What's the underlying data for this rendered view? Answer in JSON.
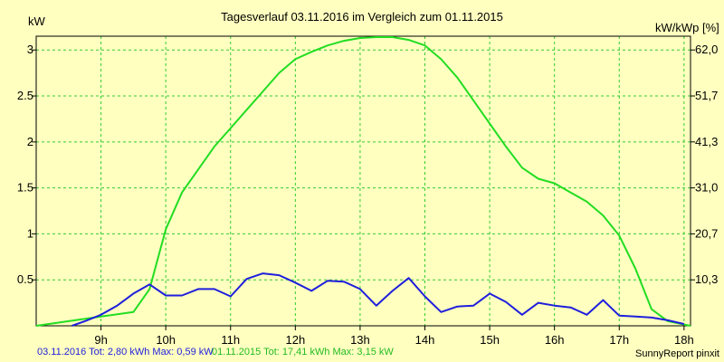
{
  "chart_data": {
    "type": "line",
    "title": "Tagesverlauf 03.11.2016 im Vergleich zum 01.11.2015",
    "ylabel_left": "kW",
    "ylabel_right": "kW/kWp [%]",
    "xlim": [
      8.0,
      18.1
    ],
    "ylim": [
      0,
      3.15
    ],
    "x_ticks": [
      9,
      10,
      11,
      12,
      13,
      14,
      15,
      16,
      17,
      18
    ],
    "x_tick_labels": [
      "9h",
      "10h",
      "11h",
      "12h",
      "13h",
      "14h",
      "15h",
      "16h",
      "17h",
      "18h"
    ],
    "y_ticks_left": [
      0.5,
      1,
      1.5,
      2,
      2.5,
      3
    ],
    "y_tick_labels_left": [
      "0.5",
      "1",
      "1.5",
      "2",
      "2.5",
      "3"
    ],
    "y_tick_labels_right": [
      "10,3",
      "20,7",
      "31,0",
      "41,3",
      "51,7",
      "62,0"
    ],
    "grid": true,
    "grid_color": "#33cc33",
    "series": [
      {
        "name": "01.11.2015",
        "color": "#22dd22",
        "x": [
          8.0,
          8.5,
          9.0,
          9.5,
          9.75,
          10.0,
          10.25,
          10.5,
          10.75,
          11.0,
          11.25,
          11.5,
          11.75,
          12.0,
          12.25,
          12.5,
          12.75,
          13.0,
          13.25,
          13.5,
          13.75,
          14.0,
          14.25,
          14.5,
          14.75,
          15.0,
          15.25,
          15.5,
          15.75,
          16.0,
          16.25,
          16.5,
          16.75,
          17.0,
          17.25,
          17.5,
          17.75,
          18.1
        ],
        "y": [
          0.0,
          0.05,
          0.1,
          0.15,
          0.4,
          1.05,
          1.45,
          1.7,
          1.95,
          2.15,
          2.35,
          2.55,
          2.75,
          2.9,
          2.98,
          3.05,
          3.1,
          3.13,
          3.14,
          3.14,
          3.11,
          3.05,
          2.9,
          2.7,
          2.45,
          2.2,
          1.95,
          1.72,
          1.6,
          1.55,
          1.45,
          1.35,
          1.2,
          0.98,
          0.62,
          0.18,
          0.05,
          0.0
        ]
      },
      {
        "name": "03.11.2016",
        "color": "#1f1fdd",
        "x": [
          8.55,
          8.75,
          9.0,
          9.25,
          9.5,
          9.75,
          10.0,
          10.25,
          10.5,
          10.75,
          11.0,
          11.25,
          11.5,
          11.75,
          12.0,
          12.25,
          12.5,
          12.75,
          13.0,
          13.25,
          13.5,
          13.75,
          14.0,
          14.25,
          14.5,
          14.75,
          15.0,
          15.25,
          15.5,
          15.75,
          16.0,
          16.25,
          16.5,
          16.75,
          17.0,
          17.25,
          17.5,
          17.75,
          18.0
        ],
        "y": [
          0.0,
          0.05,
          0.12,
          0.22,
          0.35,
          0.45,
          0.33,
          0.33,
          0.4,
          0.4,
          0.32,
          0.51,
          0.57,
          0.55,
          0.47,
          0.38,
          0.49,
          0.48,
          0.4,
          0.22,
          0.38,
          0.52,
          0.32,
          0.15,
          0.21,
          0.22,
          0.35,
          0.26,
          0.12,
          0.25,
          0.22,
          0.2,
          0.12,
          0.28,
          0.11,
          0.1,
          0.09,
          0.06,
          0.02
        ]
      }
    ],
    "footer_left_blue": "03.11.2016 Tot: 2,80 kWh Max: 0,59 kW",
    "footer_left_green": "01.11.2015 Tot: 17,41 kWh Max: 3,15 kW",
    "footer_right": "SunnyReport pinxit"
  }
}
